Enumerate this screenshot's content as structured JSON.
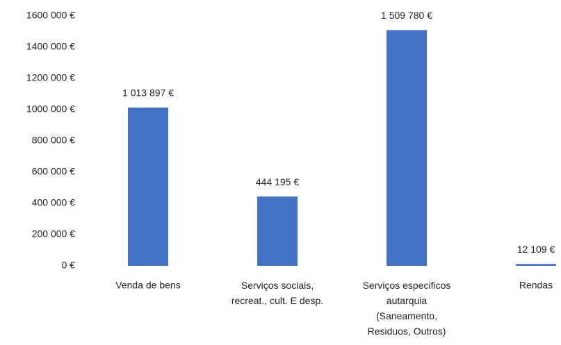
{
  "chart_data": {
    "type": "bar",
    "categories": [
      "Venda de bens",
      "Serviços sociais,\nrecreat., cult. E desp.",
      "Serviços especificos\nautarquia\n(Saneamento,\nResiduos, Outros)",
      "Rendas"
    ],
    "values": [
      1013897,
      444195,
      1509780,
      12109
    ],
    "value_labels": [
      "1 013 897 €",
      "444 195 €",
      "1 509 780 €",
      "12 109 €"
    ],
    "color": "#4472c4",
    "ylim": [
      0,
      1600000
    ],
    "yticks": [
      {
        "value": 0,
        "label": "0 €"
      },
      {
        "value": 200000,
        "label": "200 000 €"
      },
      {
        "value": 400000,
        "label": "400 000 €"
      },
      {
        "value": 600000,
        "label": "600 000 €"
      },
      {
        "value": 800000,
        "label": "800 000 €"
      },
      {
        "value": 1000000,
        "label": "1000 000 €"
      },
      {
        "value": 1200000,
        "label": "1200 000 €"
      },
      {
        "value": 1400000,
        "label": "1400 000 €"
      },
      {
        "value": 1600000,
        "label": "1600 000 €"
      }
    ],
    "grid": false
  }
}
